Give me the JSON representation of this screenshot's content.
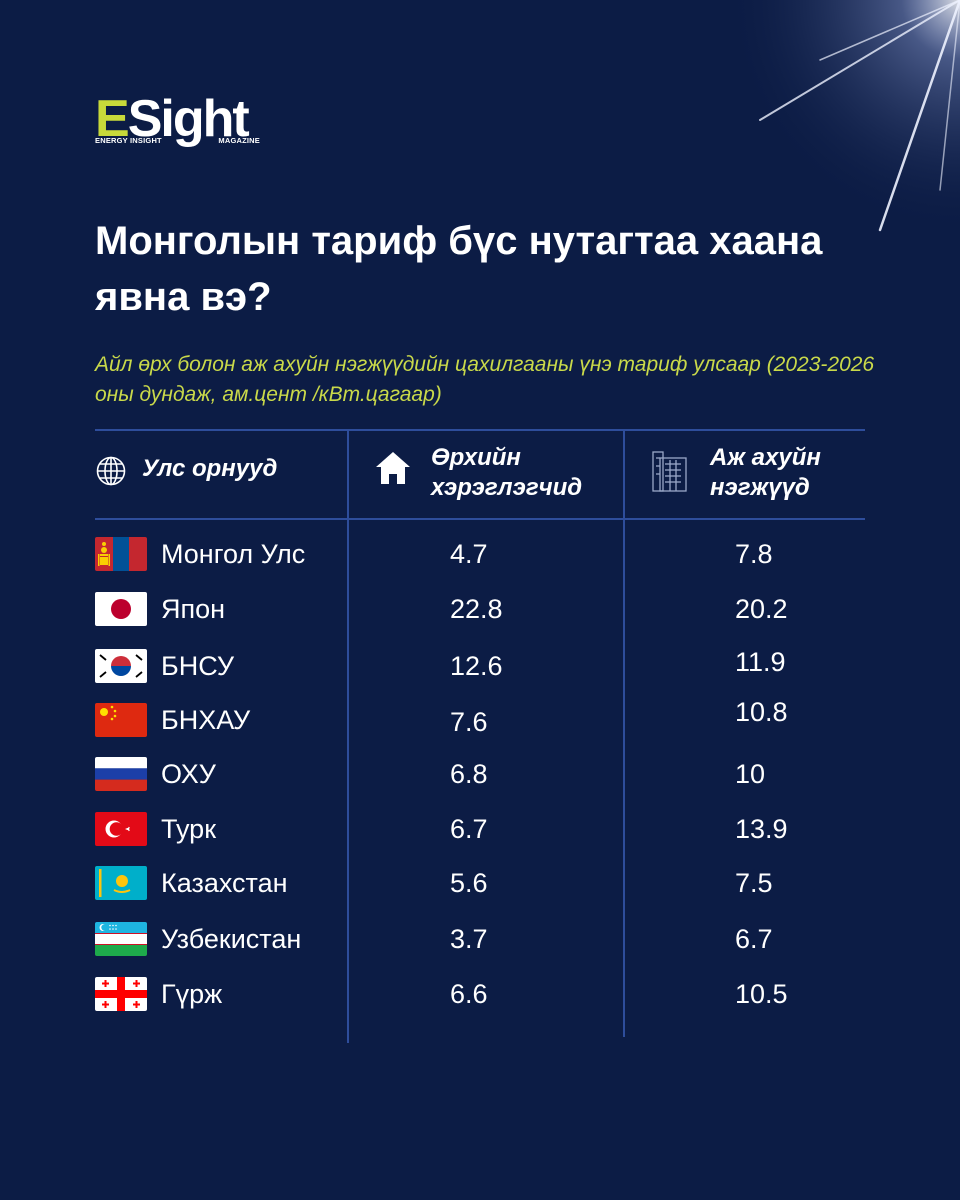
{
  "brand": {
    "logo_e": "E",
    "logo_rest": "Sight",
    "logo_sub_left": "ENERGY INSIGHT",
    "logo_sub_right": "MAGAZINE"
  },
  "title": "Монголын тариф бүс нутагтаа хаана явна вэ?",
  "subtitle": "Айл өрх болон аж ахуйн нэгжүүдийн цахилгааны үнэ тариф улсаар (2023-2026 оны дундаж, ам.цент /кВт.цагаар)",
  "table": {
    "headers": {
      "country": "Улс орнууд",
      "household_line1": "Өрхийн",
      "household_line2": "хэрэглэгчид",
      "business_line1": "Аж ахуйн",
      "business_line2": "нэгжүүд"
    },
    "icons": {
      "country": "globe-icon",
      "household": "house-icon",
      "business": "office-building-icon"
    },
    "rows": [
      {
        "flag": "mongolia-flag",
        "country": "Монгол Улс",
        "household": "4.7",
        "business": "7.8"
      },
      {
        "flag": "japan-flag",
        "country": "Япон",
        "household": "22.8",
        "business": "20.2"
      },
      {
        "flag": "south-korea-flag",
        "country": "БНСУ",
        "household": "12.6",
        "business": "11.9"
      },
      {
        "flag": "china-flag",
        "country": "БНХАУ",
        "household": "7.6",
        "business": "10.8"
      },
      {
        "flag": "russia-flag",
        "country": "ОХУ",
        "household": "6.8",
        "business": "10"
      },
      {
        "flag": "turkey-flag",
        "country": "Турк",
        "household": "6.7",
        "business": "13.9"
      },
      {
        "flag": "kazakhstan-flag",
        "country": "Казахстан",
        "household": "5.6",
        "business": "7.5"
      },
      {
        "flag": "uzbekistan-flag",
        "country": "Узбекистан",
        "household": "3.7",
        "business": "6.7"
      },
      {
        "flag": "georgia-flag",
        "country": "Гүрж",
        "household": "6.6",
        "business": "10.5"
      }
    ]
  },
  "colors": {
    "background": "#0c1c45",
    "accent": "#c9d94a",
    "rule": "#2e4d9b",
    "text": "#ffffff"
  },
  "chart_data": {
    "type": "table",
    "title": "Монголын тариф бүс нутагтаа хаана явна вэ?",
    "subtitle": "Айл өрх болон аж ахуйн нэгжүүдийн цахилгааны үнэ тариф улсаар (2023-2026 оны дундаж, ам.цент /кВт.цагаар)",
    "columns": [
      "Улс орнууд",
      "Өрхийн хэрэглэгчид",
      "Аж ахуйн нэгжүүд"
    ],
    "categories": [
      "Монгол Улс",
      "Япон",
      "БНСУ",
      "БНХАУ",
      "ОХУ",
      "Турк",
      "Казахстан",
      "Узбекистан",
      "Гүрж"
    ],
    "series": [
      {
        "name": "Өрхийн хэрэглэгчид",
        "values": [
          4.7,
          22.8,
          12.6,
          7.6,
          6.8,
          6.7,
          5.6,
          3.7,
          6.6
        ]
      },
      {
        "name": "Аж ахуйн нэгжүүд",
        "values": [
          7.8,
          20.2,
          11.9,
          10.8,
          10,
          13.9,
          7.5,
          6.7,
          10.5
        ]
      }
    ]
  }
}
